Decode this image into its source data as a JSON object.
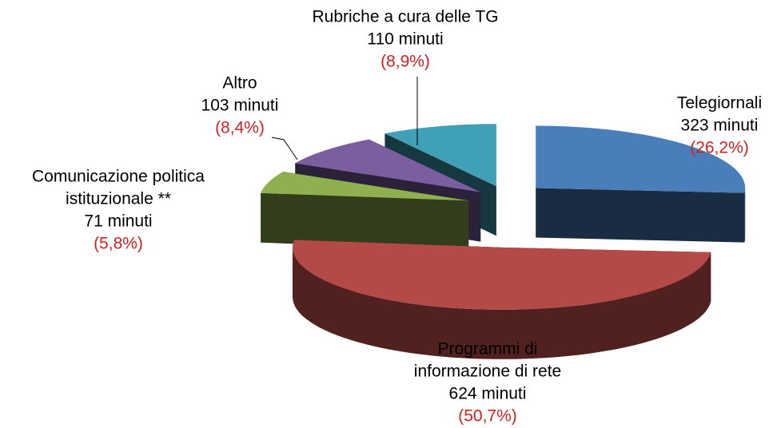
{
  "chart_data": {
    "type": "pie3d",
    "categories": [
      [
        "Telegiornali"
      ],
      [
        "Programmi di",
        "informazione di rete"
      ],
      [
        "Comunicazione politica",
        "istituzionale **"
      ],
      [
        "Altro"
      ],
      [
        "Rubriche a cura delle TG"
      ]
    ],
    "values": [
      323,
      624,
      71,
      103,
      110
    ],
    "value_labels": [
      "323 minuti",
      "624 minuti",
      "71 minuti",
      "103 minuti",
      "110 minuti"
    ],
    "percent": [
      26.2,
      50.7,
      5.8,
      8.4,
      8.9
    ],
    "percent_labels": [
      "(26,2%)",
      "(50,7%)",
      "(5,8%)",
      "(8,4%)",
      "(8,9%)"
    ],
    "colors": [
      "#4a7ebb",
      "#b44a47",
      "#8fb04e",
      "#7a5ea0",
      "#3fa0b6"
    ],
    "percent_color": "#d42020"
  }
}
